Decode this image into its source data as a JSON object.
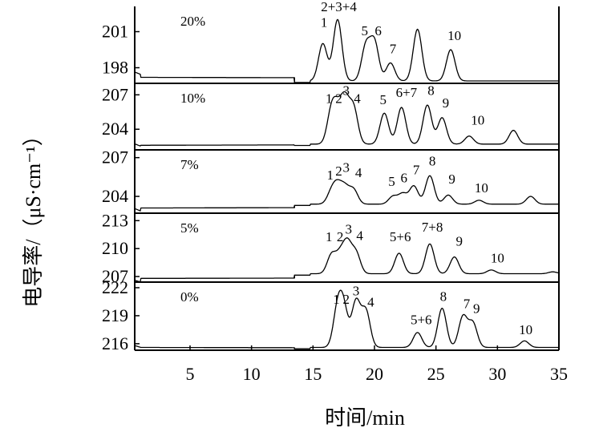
{
  "chart_data": {
    "type": "line",
    "xlabel": "时间/min",
    "ylabel": "电导率/（μS·cm⁻¹）",
    "xlim": [
      0.5,
      35
    ],
    "xticks": [
      5,
      10,
      15,
      20,
      25,
      30,
      35
    ],
    "grid": false,
    "panels": [
      {
        "label": "20%",
        "ylim": [
          196.7,
          203.1
        ],
        "yticks": [
          201,
          198
        ],
        "baseline": 196.9,
        "offset_level": 197.2,
        "offset_start": 1.0,
        "offset_end": 13.5,
        "peaks": [
          {
            "t": 15.8,
            "h": 200.0
          },
          {
            "t": 17.0,
            "h": 202.0
          },
          {
            "t": 19.3,
            "h": 199.8
          },
          {
            "t": 20.0,
            "h": 200.1
          },
          {
            "t": 21.3,
            "h": 198.4
          },
          {
            "t": 23.5,
            "h": 201.2
          },
          {
            "t": 26.2,
            "h": 199.5
          }
        ],
        "annotations": [
          {
            "text": "1",
            "t": 15.9,
            "y": 201.4
          },
          {
            "text": "2+3+4",
            "t": 17.1,
            "y": 202.7
          },
          {
            "text": "5",
            "t": 19.2,
            "y": 200.7
          },
          {
            "text": "6",
            "t": 20.3,
            "y": 200.7
          },
          {
            "text": "7",
            "t": 21.5,
            "y": 199.2
          },
          {
            "text": "10",
            "t": 26.5,
            "y": 200.3
          }
        ]
      },
      {
        "label": "10%",
        "ylim": [
          202.2,
          208.0
        ],
        "yticks": [
          207,
          204
        ],
        "baseline": 202.7,
        "offset_level": 202.6,
        "offset_start": 1.0,
        "offset_end": 13.5,
        "peaks": [
          {
            "t": 16.5,
            "h": 205.5
          },
          {
            "t": 17.0,
            "h": 205.0
          },
          {
            "t": 17.6,
            "h": 206.3
          },
          {
            "t": 18.3,
            "h": 205.8
          },
          {
            "t": 20.8,
            "h": 205.4
          },
          {
            "t": 22.2,
            "h": 205.9
          },
          {
            "t": 24.3,
            "h": 206.1
          },
          {
            "t": 25.5,
            "h": 205.0
          },
          {
            "t": 27.7,
            "h": 203.4
          },
          {
            "t": 31.3,
            "h": 203.9
          }
        ],
        "annotations": [
          {
            "text": "1",
            "t": 16.3,
            "y": 206.3
          },
          {
            "text": "2",
            "t": 17.1,
            "y": 206.3
          },
          {
            "text": "3",
            "t": 17.7,
            "y": 207.0
          },
          {
            "text": "4",
            "t": 18.6,
            "y": 206.3
          },
          {
            "text": "5",
            "t": 20.7,
            "y": 206.2
          },
          {
            "text": "6+7",
            "t": 22.6,
            "y": 206.8
          },
          {
            "text": "8",
            "t": 24.6,
            "y": 207.0
          },
          {
            "text": "9",
            "t": 25.8,
            "y": 205.9
          },
          {
            "text": "10",
            "t": 28.4,
            "y": 204.4
          }
        ]
      },
      {
        "label": "7%",
        "ylim": [
          202.7,
          207.6
        ],
        "yticks": [
          207,
          204
        ],
        "baseline": 203.4,
        "offset_level": 203.1,
        "offset_start": 1.0,
        "offset_end": 13.5,
        "peaks": [
          {
            "t": 16.5,
            "h": 204.3
          },
          {
            "t": 17.0,
            "h": 204.7
          },
          {
            "t": 17.6,
            "h": 204.6
          },
          {
            "t": 18.3,
            "h": 204.5
          },
          {
            "t": 21.5,
            "h": 204.0
          },
          {
            "t": 22.3,
            "h": 204.2
          },
          {
            "t": 23.2,
            "h": 204.8
          },
          {
            "t": 24.5,
            "h": 205.6
          },
          {
            "t": 26.0,
            "h": 204.1
          },
          {
            "t": 28.5,
            "h": 203.7
          },
          {
            "t": 32.7,
            "h": 204.0
          }
        ],
        "annotations": [
          {
            "text": "1",
            "t": 16.4,
            "y": 205.3
          },
          {
            "text": "2",
            "t": 17.1,
            "y": 205.6
          },
          {
            "text": "3",
            "t": 17.7,
            "y": 205.9
          },
          {
            "text": "4",
            "t": 18.7,
            "y": 205.5
          },
          {
            "text": "5",
            "t": 21.4,
            "y": 204.8
          },
          {
            "text": "6",
            "t": 22.4,
            "y": 205.1
          },
          {
            "text": "7",
            "t": 23.4,
            "y": 205.7
          },
          {
            "text": "8",
            "t": 24.7,
            "y": 206.4
          },
          {
            "text": "9",
            "t": 26.3,
            "y": 205.0
          },
          {
            "text": "10",
            "t": 28.7,
            "y": 204.3
          }
        ]
      },
      {
        "label": "5%",
        "ylim": [
          206.4,
          213.8
        ],
        "yticks": [
          213,
          210,
          207
        ],
        "baseline": 207.3,
        "offset_level": 206.8,
        "offset_start": 1.0,
        "offset_end": 13.5,
        "peaks": [
          {
            "t": 16.5,
            "h": 209.3
          },
          {
            "t": 17.2,
            "h": 209.2
          },
          {
            "t": 17.8,
            "h": 210.4
          },
          {
            "t": 18.5,
            "h": 209.5
          },
          {
            "t": 22.0,
            "h": 209.5
          },
          {
            "t": 24.5,
            "h": 210.5
          },
          {
            "t": 26.5,
            "h": 209.1
          },
          {
            "t": 29.5,
            "h": 207.7
          },
          {
            "t": 34.5,
            "h": 207.5
          }
        ],
        "annotations": [
          {
            "text": "1",
            "t": 16.3,
            "y": 210.8
          },
          {
            "text": "2",
            "t": 17.2,
            "y": 210.8
          },
          {
            "text": "3",
            "t": 17.9,
            "y": 211.6
          },
          {
            "text": "4",
            "t": 18.8,
            "y": 210.9
          },
          {
            "text": "5+6",
            "t": 22.1,
            "y": 210.8
          },
          {
            "text": "7+8",
            "t": 24.7,
            "y": 211.8
          },
          {
            "text": "9",
            "t": 26.9,
            "y": 210.3
          },
          {
            "text": "10",
            "t": 30.0,
            "y": 208.5
          }
        ]
      },
      {
        "label": "0%",
        "ylim": [
          215.3,
          222.6
        ],
        "yticks": [
          222,
          219,
          216
        ],
        "baseline": 215.6,
        "offset_level": 215.6,
        "offset_start": 1.0,
        "offset_end": 13.5,
        "peaks": [
          {
            "t": 17.0,
            "h": 219.6
          },
          {
            "t": 17.5,
            "h": 219.5
          },
          {
            "t": 18.5,
            "h": 220.5
          },
          {
            "t": 19.3,
            "h": 219.5
          },
          {
            "t": 23.5,
            "h": 217.2
          },
          {
            "t": 25.5,
            "h": 219.8
          },
          {
            "t": 27.2,
            "h": 218.9
          },
          {
            "t": 28.0,
            "h": 218.2
          },
          {
            "t": 32.2,
            "h": 216.3
          }
        ],
        "annotations": [
          {
            "text": "1",
            "t": 16.9,
            "y": 220.3
          },
          {
            "text": "2",
            "t": 17.7,
            "y": 220.3
          },
          {
            "text": "3",
            "t": 18.5,
            "y": 221.2
          },
          {
            "text": "4",
            "t": 19.7,
            "y": 220.0
          },
          {
            "text": "5+6",
            "t": 23.8,
            "y": 218.1
          },
          {
            "text": "8",
            "t": 25.6,
            "y": 220.6
          },
          {
            "text": "7",
            "t": 27.5,
            "y": 219.8
          },
          {
            "text": "9",
            "t": 28.3,
            "y": 219.3
          },
          {
            "text": "10",
            "t": 32.3,
            "y": 217.0
          }
        ]
      }
    ]
  }
}
